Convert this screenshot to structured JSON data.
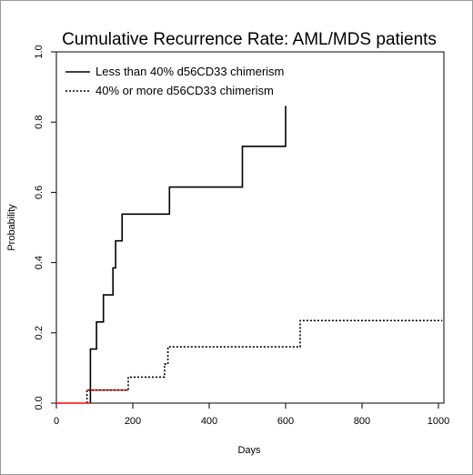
{
  "chart_data": {
    "type": "line",
    "title": "Cumulative Recurrence Rate: AML/MDS patients",
    "xlabel": "Days",
    "ylabel": "Probability",
    "xlim": [
      0,
      1010
    ],
    "ylim": [
      0,
      1
    ],
    "x_ticks": [
      0,
      200,
      400,
      600,
      800,
      1000
    ],
    "y_ticks": [
      0.0,
      0.2,
      0.4,
      0.6,
      0.8,
      1.0
    ],
    "x_tick_labels": [
      "0",
      "200",
      "400",
      "600",
      "800",
      "1000"
    ],
    "y_tick_labels": [
      "0.0",
      "0.2",
      "0.4",
      "0.6",
      "0.8",
      "1.0"
    ],
    "legend_position": "top-left",
    "grid": false,
    "series": [
      {
        "name": "Less than 40% d56CD33 chimerism",
        "style": "solid",
        "color": "#000000",
        "step": true,
        "points": [
          [
            89,
            0.0
          ],
          [
            89,
            0.154
          ],
          [
            105,
            0.154
          ],
          [
            105,
            0.231
          ],
          [
            123,
            0.231
          ],
          [
            123,
            0.308
          ],
          [
            148,
            0.308
          ],
          [
            148,
            0.385
          ],
          [
            155,
            0.385
          ],
          [
            155,
            0.462
          ],
          [
            172,
            0.462
          ],
          [
            172,
            0.538
          ],
          [
            296,
            0.538
          ],
          [
            296,
            0.615
          ],
          [
            487,
            0.615
          ],
          [
            487,
            0.731
          ],
          [
            600,
            0.731
          ],
          [
            600,
            0.846
          ]
        ]
      },
      {
        "name": "40% or more d56CD33 chimerism",
        "style": "dotted",
        "color": "#000000",
        "step": true,
        "points": [
          [
            80,
            0.0
          ],
          [
            80,
            0.037
          ],
          [
            188,
            0.037
          ],
          [
            188,
            0.074
          ],
          [
            283,
            0.074
          ],
          [
            283,
            0.111
          ],
          [
            292,
            0.111
          ],
          [
            292,
            0.16
          ],
          [
            638,
            0.16
          ],
          [
            638,
            0.235
          ],
          [
            1010,
            0.235
          ]
        ]
      },
      {
        "name": "",
        "style": "solid",
        "color": "#ff0000",
        "step": true,
        "points": [
          [
            0,
            0.0
          ],
          [
            89,
            0.0
          ]
        ]
      },
      {
        "name": "",
        "style": "dotted",
        "color": "#ff0000",
        "step": true,
        "points": [
          [
            80,
            0.037
          ],
          [
            188,
            0.037
          ]
        ]
      }
    ]
  }
}
